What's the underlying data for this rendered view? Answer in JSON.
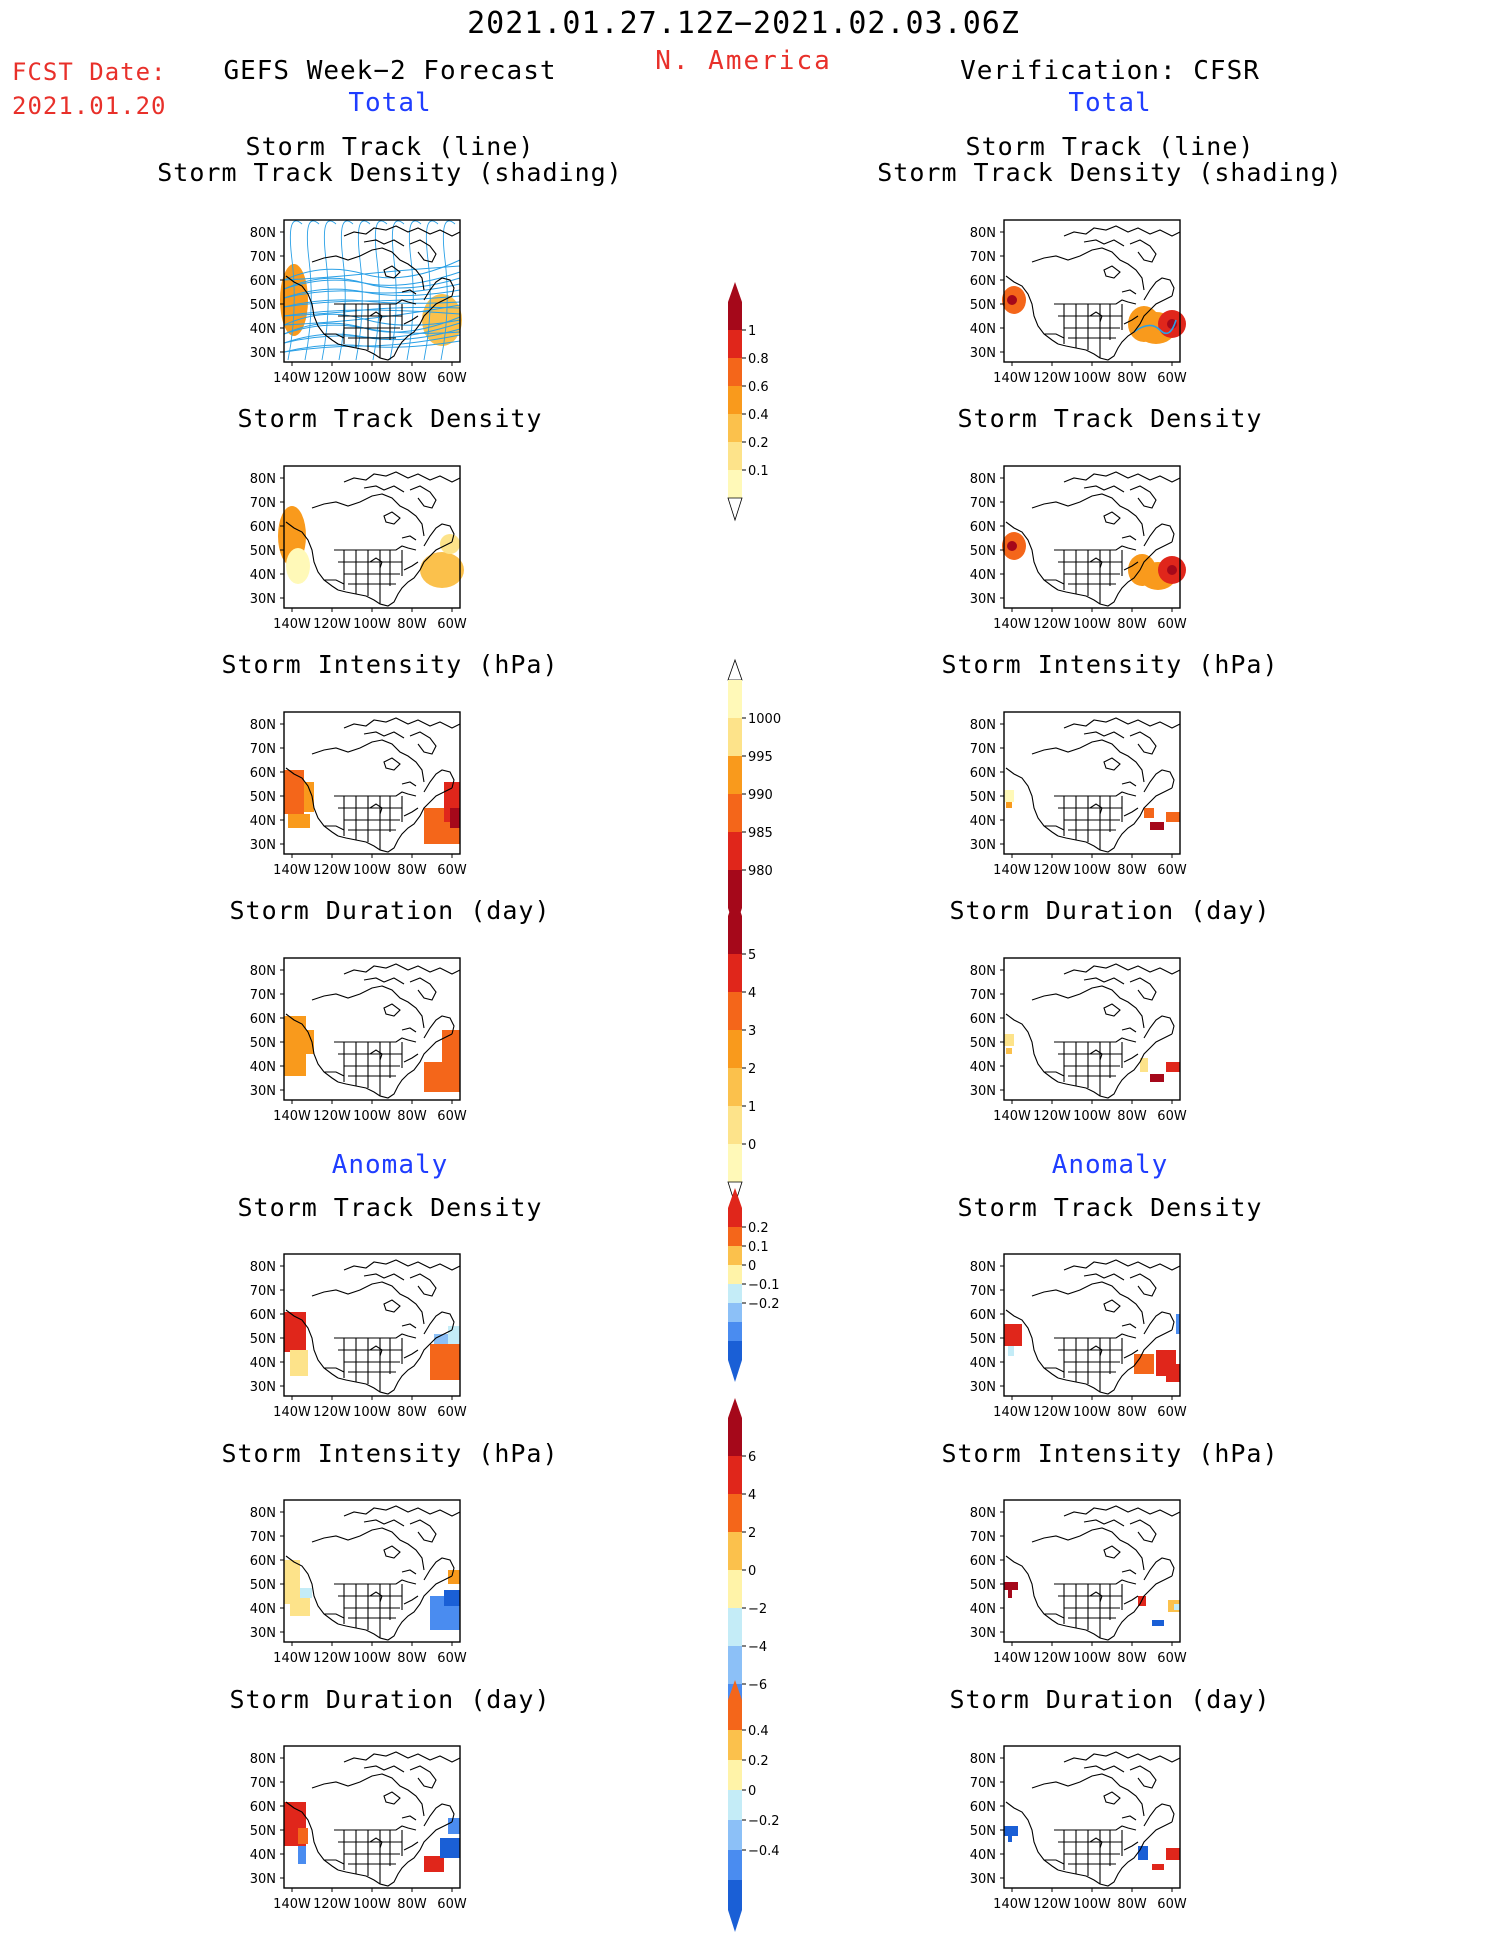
{
  "header": {
    "period": "2021.01.27.12Z−2021.02.03.06Z",
    "region": "N. America",
    "fcst_label": "FCST Date:",
    "fcst_date": "2021.01.20",
    "left_title": "GEFS Week−2 Forecast",
    "right_title": "Verification: CFSR",
    "total_label": "Total",
    "anomaly_label": "Anomaly"
  },
  "panel_titles": {
    "track_line": "Storm Track (line)",
    "track_shading": "Storm Track Density (shading)",
    "density": "Storm Track Density",
    "intensity": "Storm Intensity (hPa)",
    "duration": "Storm Duration (day)"
  },
  "axes": {
    "lat_labels": [
      "80N",
      "70N",
      "60N",
      "50N",
      "40N",
      "30N"
    ],
    "lon_labels": [
      "140W",
      "120W",
      "100W",
      "80W",
      "60W"
    ]
  },
  "colorbars": {
    "density_total": [
      "1",
      "0.8",
      "0.6",
      "0.4",
      "0.2",
      "0.1"
    ],
    "intensity_total": [
      "1000",
      "995",
      "990",
      "985",
      "980"
    ],
    "duration_total": [
      "5",
      "4",
      "3",
      "2",
      "1",
      "0"
    ],
    "density_anom": [
      "0.2",
      "0.1",
      "0",
      "−0.1",
      "−0.2"
    ],
    "intensity_anom": [
      "6",
      "4",
      "2",
      "0",
      "−2",
      "−4",
      "−6"
    ],
    "duration_anom": [
      "0.4",
      "0.2",
      "0",
      "−0.2",
      "−0.4"
    ]
  },
  "colors": {
    "red_text": "#e8302a",
    "blue_text": "#1f3dff",
    "track_line": "#2aa0e6",
    "warm_scale": [
      "#fff9b8",
      "#fde38a",
      "#fbc14c",
      "#f99a1c",
      "#f4661a",
      "#e0261b",
      "#a5081a"
    ],
    "cool_scale": [
      "#1a5fd6",
      "#4a8cf0",
      "#8cc0f7",
      "#c4ecf7",
      "#fff3a8",
      "#fbc14c",
      "#f4661a",
      "#e0261b",
      "#a5081a"
    ]
  }
}
